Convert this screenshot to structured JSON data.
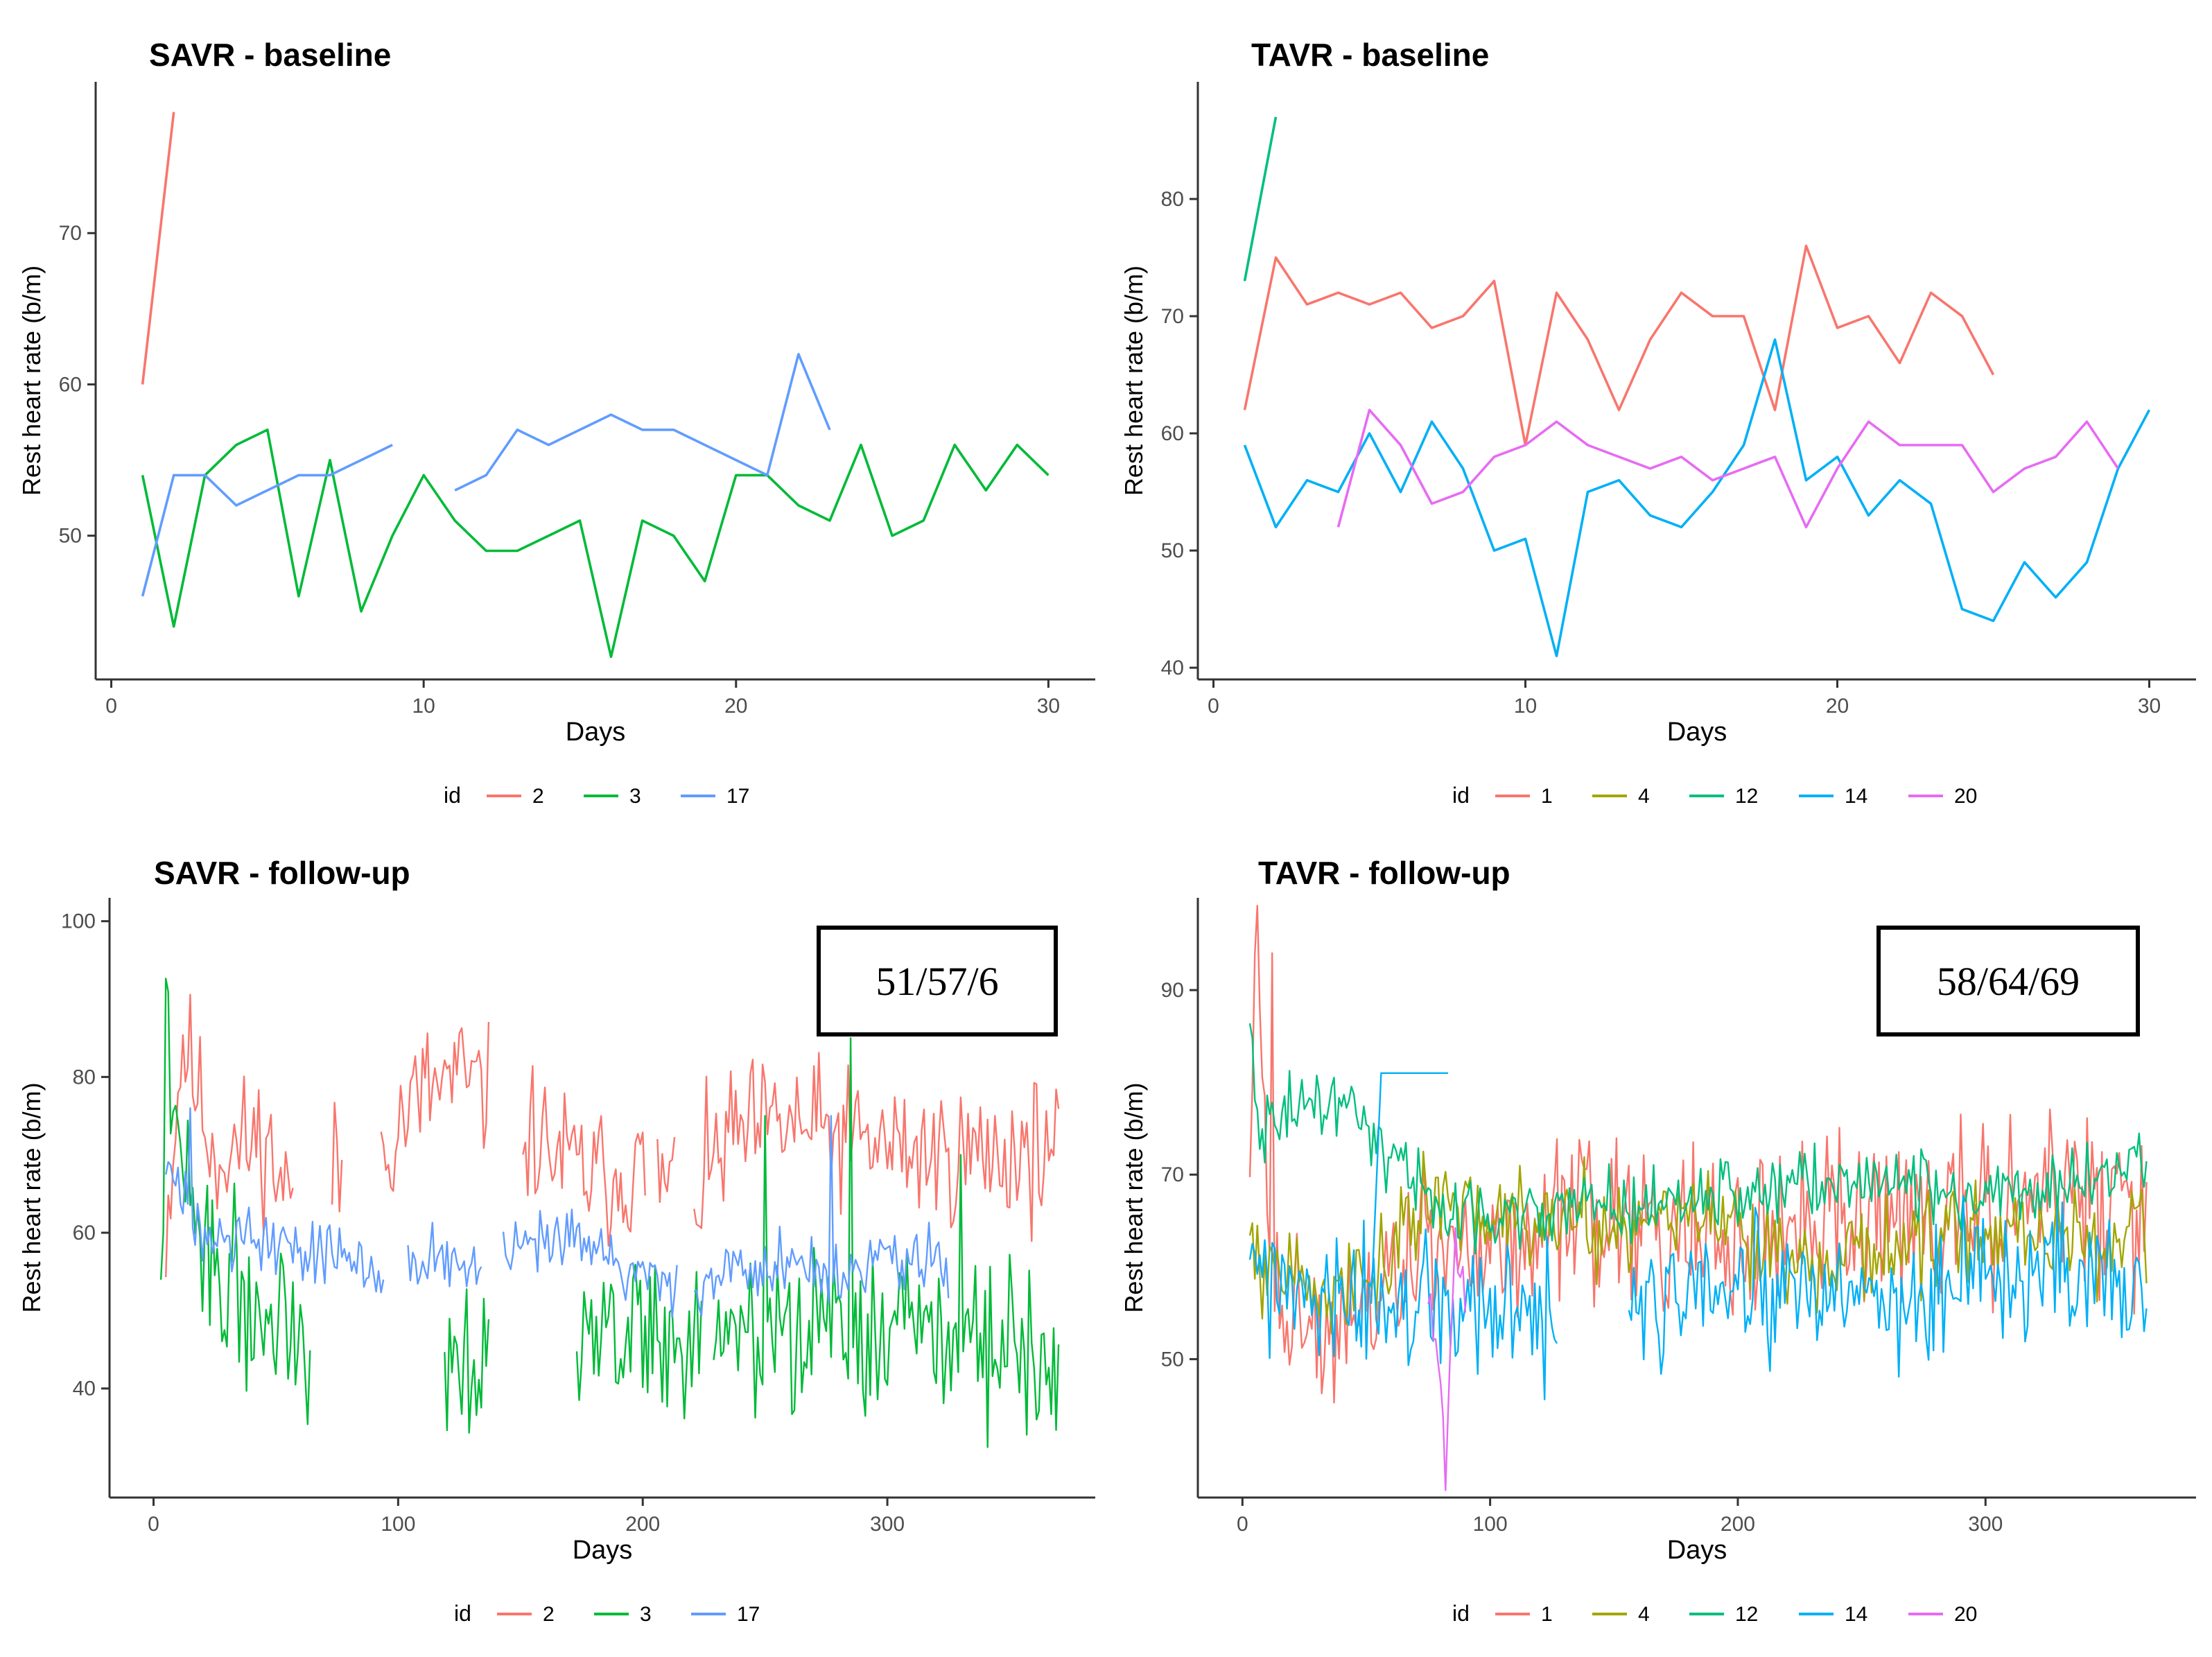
{
  "colors": {
    "id1": "#F8766D",
    "id2": "#F8766D",
    "id3": "#00BA38",
    "id4": "#A3A500",
    "id12": "#00BF7D",
    "id14": "#00B0F6",
    "id17": "#619CFF",
    "id20": "#E76BF3",
    "axis": "#333333",
    "tick_text": "#4D4D4D"
  },
  "chart_data": [
    {
      "panel": "savr-baseline",
      "type": "line",
      "title": "SAVR - baseline",
      "xlabel": "Days",
      "ylabel": "Rest heart rate (b/m)",
      "xlim": [
        -0.5,
        31.5
      ],
      "ylim": [
        40.5,
        80
      ],
      "xticks": [
        0,
        10,
        20,
        30
      ],
      "yticks": [
        50,
        60,
        70
      ],
      "legend": {
        "title": "id",
        "position": "bottom"
      },
      "series": [
        {
          "name": "2",
          "color_key": "id2",
          "x": [
            1,
            2
          ],
          "y": [
            60,
            78
          ]
        },
        {
          "name": "3",
          "color_key": "id3",
          "x": [
            1,
            2,
            3,
            4,
            5,
            6,
            7,
            8,
            9,
            10,
            11,
            12,
            13,
            14,
            15,
            16,
            17,
            18,
            19,
            20,
            21,
            22,
            23,
            24,
            25,
            26,
            27,
            28,
            29,
            30
          ],
          "y": [
            54,
            44,
            54,
            56,
            57,
            46,
            55,
            45,
            50,
            54,
            51,
            49,
            49,
            50,
            51,
            42,
            51,
            50,
            47,
            54,
            54,
            52,
            51,
            56,
            50,
            51,
            56,
            53,
            56,
            54
          ]
        },
        {
          "name": "17",
          "color_key": "id17",
          "x": [
            1,
            2,
            3,
            4,
            5,
            6,
            7,
            8,
            9,
            null,
            11,
            12,
            13,
            14,
            15,
            16,
            17,
            18,
            19,
            20,
            21,
            22,
            23
          ],
          "y": [
            46,
            54,
            54,
            52,
            53,
            54,
            54,
            55,
            56,
            null,
            53,
            54,
            57,
            56,
            57,
            58,
            57,
            57,
            56,
            55,
            54,
            62,
            57
          ]
        }
      ]
    },
    {
      "panel": "tavr-baseline",
      "type": "line",
      "title": "TAVR - baseline",
      "xlabel": "Days",
      "ylabel": "Rest heart rate (b/m)",
      "xlim": [
        -0.5,
        31.5
      ],
      "ylim": [
        39,
        90
      ],
      "xticks": [
        0,
        10,
        20,
        30
      ],
      "yticks": [
        40,
        50,
        60,
        70,
        80
      ],
      "legend": {
        "title": "id",
        "position": "bottom"
      },
      "series": [
        {
          "name": "1",
          "color_key": "id1",
          "x": [
            1,
            2,
            3,
            4,
            5,
            6,
            7,
            8,
            9,
            10,
            11,
            12,
            13,
            14,
            15,
            16,
            17,
            18,
            19,
            20,
            21,
            22,
            23,
            24,
            25
          ],
          "y": [
            62,
            75,
            71,
            72,
            71,
            72,
            69,
            70,
            73,
            59,
            72,
            68,
            62,
            68,
            72,
            70,
            70,
            62,
            76,
            69,
            70,
            66,
            72,
            70,
            65
          ]
        },
        {
          "name": "4",
          "color_key": "id4",
          "x": [],
          "y": []
        },
        {
          "name": "12",
          "color_key": "id12",
          "x": [
            1,
            2
          ],
          "y": [
            73,
            87
          ]
        },
        {
          "name": "14",
          "color_key": "id14",
          "x": [
            1,
            2,
            3,
            4,
            5,
            6,
            7,
            8,
            9,
            10,
            11,
            12,
            13,
            14,
            15,
            16,
            17,
            18,
            19,
            20,
            21,
            22,
            23,
            24,
            25,
            26,
            27,
            28,
            29,
            30
          ],
          "y": [
            59,
            52,
            56,
            55,
            60,
            55,
            61,
            57,
            50,
            51,
            41,
            55,
            56,
            53,
            52,
            55,
            59,
            68,
            56,
            58,
            53,
            56,
            54,
            45,
            44,
            49,
            46,
            49,
            57,
            62
          ]
        },
        {
          "name": "20",
          "color_key": "id20",
          "x": [
            4,
            5,
            6,
            7,
            8,
            9,
            10,
            11,
            12,
            13,
            14,
            15,
            16,
            17,
            18,
            19,
            20,
            21,
            22,
            23,
            24,
            25,
            26,
            27,
            28,
            29
          ],
          "y": [
            52,
            62,
            59,
            54,
            55,
            58,
            59,
            61,
            59,
            58,
            57,
            58,
            56,
            57,
            58,
            52,
            57,
            61,
            59,
            59,
            59,
            55,
            57,
            58,
            61,
            57
          ]
        }
      ]
    },
    {
      "panel": "savr-followup",
      "type": "line",
      "title": "SAVR - follow-up",
      "xlabel": "Days",
      "ylabel": "Rest heart rate (b/m)",
      "xlim": [
        -18,
        385
      ],
      "ylim": [
        26,
        103
      ],
      "xticks": [
        0,
        100,
        200,
        300
      ],
      "yticks": [
        40,
        60,
        80,
        100
      ],
      "legend": {
        "title": "id",
        "position": "bottom"
      },
      "annotation": "51/57/6",
      "series": [
        {
          "name": "2",
          "color_key": "id2",
          "x": [
            5,
            370
          ],
          "y": [
            71,
            71
          ],
          "sd": 6,
          "seed": 11,
          "anchors": [
            [
              5,
              60
            ],
            [
              12,
              85
            ],
            [
              25,
              70
            ],
            [
              45,
              72
            ],
            [
              55,
              65
            ],
            [
              90,
              70
            ],
            [
              110,
              78
            ],
            [
              125,
              80
            ],
            [
              150,
              74
            ],
            [
              165,
              70
            ],
            [
              180,
              67
            ],
            [
              200,
              68
            ],
            [
              220,
              64
            ],
            [
              235,
              72
            ],
            [
              260,
              74
            ],
            [
              285,
              72
            ],
            [
              320,
              70
            ],
            [
              345,
              70
            ],
            [
              370,
              71
            ]
          ],
          "gaps": [
            [
              58,
              72
            ],
            [
              78,
              92
            ],
            [
              138,
              150
            ],
            [
              202,
              205
            ],
            [
              214,
              220
            ]
          ]
        },
        {
          "name": "3",
          "color_key": "id3",
          "x": [
            3,
            370
          ],
          "y": [
            48,
            45
          ],
          "sd": 7,
          "seed": 22,
          "anchors": [
            [
              3,
              55
            ],
            [
              5,
              84
            ],
            [
              10,
              70
            ],
            [
              20,
              58
            ],
            [
              40,
              50
            ],
            [
              60,
              48
            ],
            [
              100,
              44
            ],
            [
              125,
              45
            ],
            [
              150,
              47
            ],
            [
              175,
              47
            ],
            [
              200,
              47
            ],
            [
              250,
              46
            ],
            [
              285,
              48
            ],
            [
              300,
              45
            ],
            [
              320,
              48
            ],
            [
              340,
              46
            ],
            [
              370,
              45
            ]
          ],
          "gaps": [
            [
              65,
              118
            ],
            [
              138,
              172
            ],
            [
              225,
              228
            ]
          ],
          "spikes": [
            [
              250,
              75
            ],
            [
              285,
              85
            ],
            [
              330,
              70
            ]
          ]
        },
        {
          "name": "17",
          "color_key": "id17",
          "x": [
            5,
            325
          ],
          "y": [
            62,
            55
          ],
          "sd": 3,
          "seed": 33,
          "anchors": [
            [
              5,
              70
            ],
            [
              10,
              64
            ],
            [
              30,
              60
            ],
            [
              60,
              58
            ],
            [
              90,
              56
            ],
            [
              110,
              57
            ],
            [
              130,
              55
            ],
            [
              150,
              58
            ],
            [
              180,
              58
            ],
            [
              210,
              53
            ],
            [
              240,
              55
            ],
            [
              260,
              56
            ],
            [
              280,
              54
            ],
            [
              300,
              57
            ],
            [
              325,
              55
            ]
          ],
          "gaps": [
            [
              95,
              103
            ],
            [
              135,
              142
            ],
            [
              215,
              220
            ]
          ],
          "spikes": [
            [
              15,
              76
            ],
            [
              277,
              75
            ]
          ]
        }
      ]
    },
    {
      "panel": "tavr-followup",
      "type": "line",
      "title": "TAVR - follow-up",
      "xlabel": "Days",
      "ylabel": "Rest heart rate (b/m)",
      "xlim": [
        -18,
        385
      ],
      "ylim": [
        35,
        100
      ],
      "xticks": [
        0,
        100,
        200,
        300
      ],
      "yticks": [
        50,
        70,
        90
      ],
      "legend": {
        "title": "id",
        "position": "bottom"
      },
      "annotation": "58/64/69",
      "series": [
        {
          "name": "1",
          "color_key": "id1",
          "x": [
            3,
            365
          ],
          "y": [
            70,
            66
          ],
          "sd": 6,
          "seed": 44,
          "anchors": [
            [
              3,
              70
            ],
            [
              6,
              97
            ],
            [
              10,
              65
            ],
            [
              20,
              55
            ],
            [
              40,
              50
            ],
            [
              60,
              60
            ],
            [
              100,
              63
            ],
            [
              150,
              65
            ],
            [
              200,
              62
            ],
            [
              250,
              65
            ],
            [
              300,
              66
            ],
            [
              330,
              68
            ],
            [
              365,
              66
            ]
          ],
          "spikes": [
            [
              12,
              94
            ]
          ]
        },
        {
          "name": "4",
          "color_key": "id4",
          "x": [
            3,
            365
          ],
          "y": [
            67,
            63
          ],
          "sd": 3.5,
          "seed": 55,
          "anchors": [
            [
              3,
              66
            ],
            [
              8,
              60
            ],
            [
              30,
              58
            ],
            [
              60,
              60
            ],
            [
              70,
              66
            ],
            [
              100,
              66
            ],
            [
              150,
              65
            ],
            [
              190,
              66
            ],
            [
              220,
              60
            ],
            [
              260,
              62
            ],
            [
              300,
              64
            ],
            [
              330,
              63
            ],
            [
              365,
              62
            ]
          ]
        },
        {
          "name": "12",
          "color_key": "id12",
          "x": [
            3,
            365
          ],
          "y": [
            88,
            71
          ],
          "sd": 2.5,
          "seed": 66,
          "anchors": [
            [
              3,
              90
            ],
            [
              6,
              75
            ],
            [
              20,
              77
            ],
            [
              40,
              78
            ],
            [
              55,
              74
            ],
            [
              70,
              70
            ],
            [
              80,
              66
            ],
            [
              120,
              66
            ],
            [
              170,
              67
            ],
            [
              220,
              69
            ],
            [
              270,
              69
            ],
            [
              310,
              68
            ],
            [
              340,
              70
            ],
            [
              365,
              71
            ]
          ]
        },
        {
          "name": "14",
          "color_key": "id14",
          "x": [
            3,
            365
          ],
          "y": [
            65,
            58
          ],
          "sd": 5,
          "seed": 77,
          "anchors": [
            [
              3,
              64
            ],
            [
              10,
              58
            ],
            [
              30,
              55
            ],
            [
              50,
              56
            ],
            [
              90,
              55
            ],
            [
              120,
              54
            ],
            [
              150,
              54
            ],
            [
              170,
              56
            ],
            [
              200,
              57
            ],
            [
              240,
              56
            ],
            [
              280,
              57
            ],
            [
              320,
              59
            ],
            [
              365,
              58
            ]
          ],
          "gaps": [
            [
              128,
              155
            ]
          ],
          "plateau": {
            "x": [
              52,
              56,
              83
            ],
            "y": [
              56,
              81,
              81
            ]
          }
        },
        {
          "name": "20",
          "color_key": "id20",
          "x": [
            75,
            90
          ],
          "y": [
            60,
            58
          ],
          "sd": 3,
          "seed": 88,
          "anchors": [
            [
              75,
              60
            ],
            [
              80,
              48
            ],
            [
              82,
              38
            ],
            [
              85,
              60
            ],
            [
              90,
              58
            ]
          ]
        }
      ]
    }
  ]
}
